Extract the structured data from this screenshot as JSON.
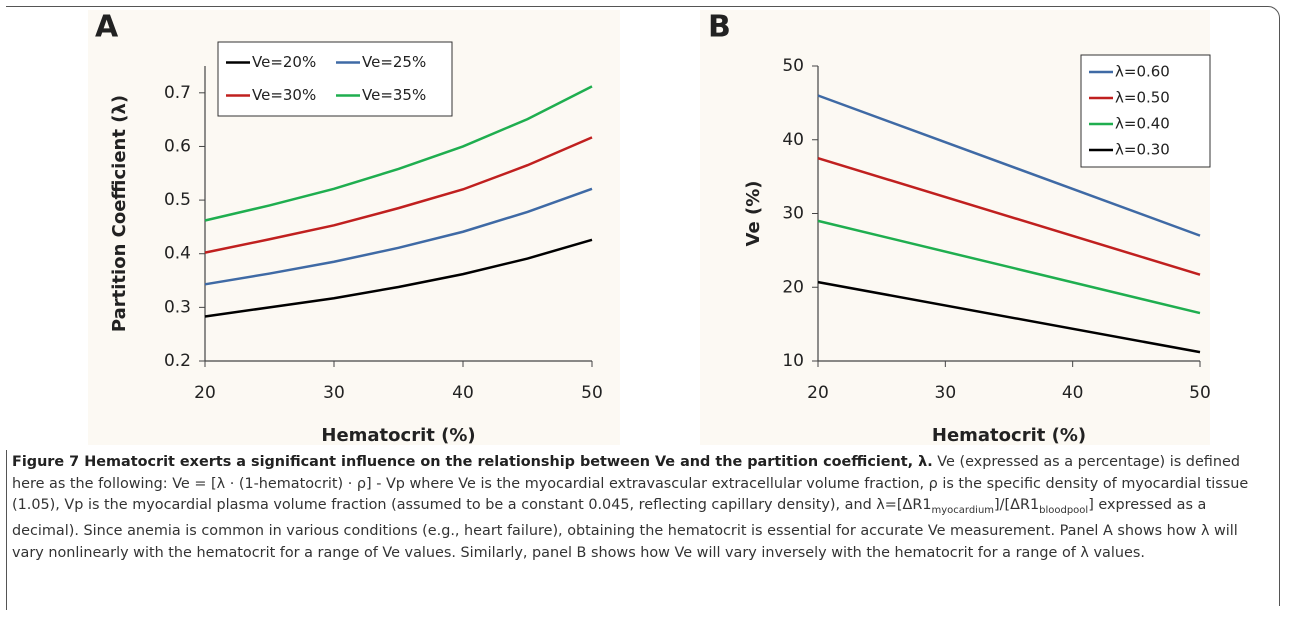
{
  "chart_data": [
    {
      "type": "line",
      "label": "A",
      "xlabel": "Hematocrit (%)",
      "ylabel": "Partition Coefficient (λ)",
      "x": [
        20,
        25,
        30,
        35,
        40,
        45,
        50
      ],
      "series": [
        {
          "name": "Ve=20%",
          "color": "#000000",
          "values": [
            0.283,
            0.3,
            0.317,
            0.338,
            0.362,
            0.391,
            0.426
          ]
        },
        {
          "name": "Ve=25%",
          "color": "#3f6aa5",
          "values": [
            0.343,
            0.363,
            0.385,
            0.411,
            0.441,
            0.478,
            0.521
          ]
        },
        {
          "name": "Ve=30%",
          "color": "#c0201f",
          "values": [
            0.402,
            0.427,
            0.453,
            0.485,
            0.52,
            0.565,
            0.617
          ]
        },
        {
          "name": "Ve=35%",
          "color": "#1fae4f",
          "values": [
            0.462,
            0.49,
            0.521,
            0.558,
            0.6,
            0.651,
            0.712
          ]
        }
      ],
      "xlim": [
        20,
        50
      ],
      "xticks": [
        20,
        30,
        40,
        50
      ],
      "ylim": [
        0.2,
        0.75
      ],
      "yticks": [
        0.2,
        0.3,
        0.4,
        0.5,
        0.6,
        0.7
      ],
      "legend": "upper left"
    },
    {
      "type": "line",
      "label": "B",
      "xlabel": "Hematocrit (%)",
      "ylabel": "Ve (%)",
      "x": [
        20,
        50
      ],
      "series": [
        {
          "name": "λ=0.60",
          "color": "#3f6aa5",
          "values": [
            46,
            27
          ]
        },
        {
          "name": "λ=0.50",
          "color": "#c0201f",
          "values": [
            37.5,
            21.7
          ]
        },
        {
          "name": "λ=0.40",
          "color": "#1fae4f",
          "values": [
            29,
            16.5
          ]
        },
        {
          "name": "λ=0.30",
          "color": "#000000",
          "values": [
            20.7,
            11.2
          ]
        }
      ],
      "xlim": [
        20,
        50
      ],
      "xticks": [
        20,
        30,
        40,
        50
      ],
      "ylim": [
        10,
        50
      ],
      "yticks": [
        10,
        20,
        30,
        40,
        50
      ],
      "legend": "upper right"
    }
  ],
  "caption": {
    "title": "Figure 7 Hematocrit exerts a significant influence on the relationship between Ve and the partition coefficient, λ.",
    "parts": [
      " Ve (expressed as a percentage) is defined here as the following: Ve = [λ · (1-hematocrit) · ρ] - Vp where Ve is the myocardial extravascular extracellular volume fraction, ρ is the specific density of myocardial tissue (1.05), Vp is the myocardial plasma volume fraction (assumed to be a constant 0.045, reflecting capillary density), and λ=[ΔR1",
      "myocardium",
      "]/[ΔR1",
      "bloodpool",
      "] expressed as a decimal). Since anemia is common in various conditions (e.g., heart failure), obtaining the hematocrit is essential for accurate Ve measurement. Panel A shows how λ will vary nonlinearly with the hematocrit for a range of Ve values. Similarly, panel B shows how Ve will vary inversely with the hematocrit for a range of λ values."
    ]
  }
}
